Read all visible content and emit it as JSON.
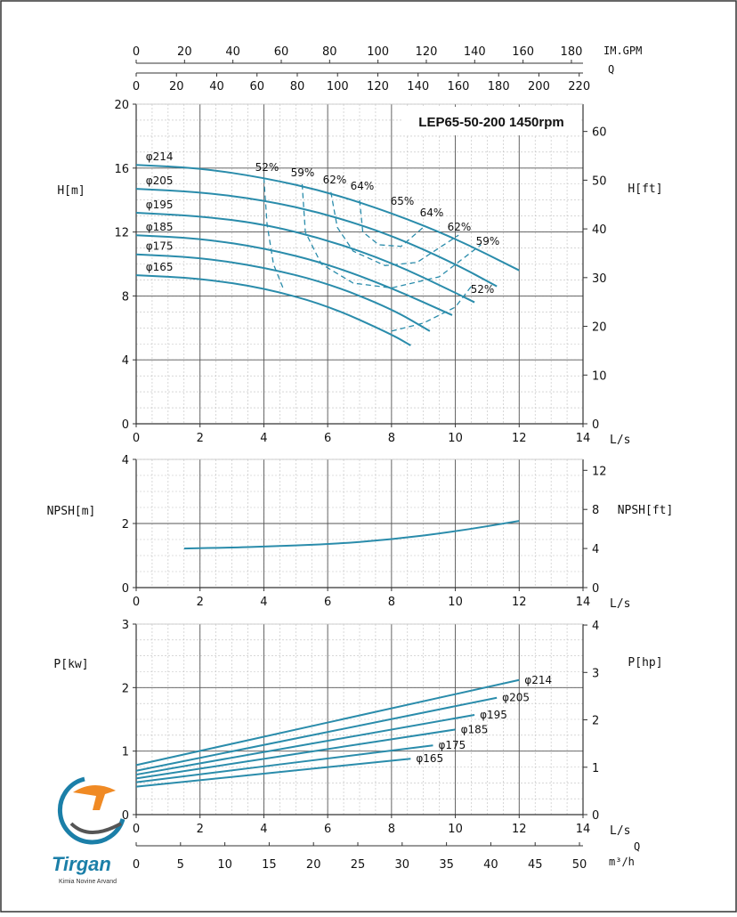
{
  "chart_data": [
    {
      "type": "line",
      "name": "head",
      "title": "LEP65-50-200 1450rpm",
      "xlabel": "L/s",
      "ylabel": "H[m]",
      "y2label": "H[ft]",
      "xlim": [
        0,
        14
      ],
      "ylim": [
        0,
        20
      ],
      "y2lim": [
        0,
        65.6
      ],
      "xticks": [
        "0",
        "2",
        "4",
        "6",
        "8",
        "10",
        "12",
        "14"
      ],
      "yticks": [
        "0",
        "4",
        "8",
        "12",
        "16",
        "20"
      ],
      "y2ticks": [
        "0",
        "10",
        "20",
        "30",
        "40",
        "50",
        "60"
      ],
      "top_axes": [
        {
          "label": "IM.GPM",
          "ticks": [
            "0",
            "20",
            "40",
            "60",
            "80",
            "100",
            "120",
            "140",
            "160",
            "180"
          ],
          "max": 184.8
        },
        {
          "label": "Q",
          "ticks": [
            "0",
            "20",
            "40",
            "60",
            "80",
            "100",
            "120",
            "140",
            "160",
            "180",
            "200",
            "220"
          ],
          "max": 221.9
        }
      ],
      "series": [
        {
          "name": "φ214",
          "x": [
            0,
            2,
            4,
            6,
            8,
            10,
            12
          ],
          "y": [
            16.2,
            16.0,
            15.4,
            14.5,
            13.2,
            11.6,
            9.6
          ]
        },
        {
          "name": "φ205",
          "x": [
            0,
            2,
            4,
            6,
            8,
            10,
            11.3
          ],
          "y": [
            14.7,
            14.5,
            14.0,
            13.1,
            11.8,
            10.0,
            8.6
          ]
        },
        {
          "name": "φ195",
          "x": [
            0,
            2,
            4,
            6,
            8,
            10,
            10.6
          ],
          "y": [
            13.2,
            13.0,
            12.5,
            11.5,
            10.1,
            8.2,
            7.6
          ]
        },
        {
          "name": "φ185",
          "x": [
            0,
            2,
            4,
            6,
            8,
            9.9
          ],
          "y": [
            11.8,
            11.6,
            11.0,
            10.0,
            8.5,
            6.8
          ]
        },
        {
          "name": "φ175",
          "x": [
            0,
            2,
            4,
            6,
            8,
            9.2
          ],
          "y": [
            10.6,
            10.4,
            9.8,
            8.8,
            7.2,
            5.8
          ]
        },
        {
          "name": "φ165",
          "x": [
            0,
            2,
            4,
            6,
            8,
            8.6
          ],
          "y": [
            9.3,
            9.1,
            8.5,
            7.4,
            5.6,
            4.9
          ]
        }
      ],
      "efficiency_labels": [
        "52%",
        "59%",
        "62%",
        "64%",
        "65%",
        "64%",
        "62%",
        "59%",
        "52%"
      ],
      "efficiency_contours": [
        {
          "name": "52%",
          "x": [
            4.0,
            4.1,
            4.3,
            4.6
          ],
          "y": [
            15.4,
            12.5,
            10.0,
            8.5
          ],
          "x2": [
            8.0,
            9.0,
            10.0,
            10.5
          ],
          "y2": [
            5.8,
            6.3,
            7.3,
            8.6
          ]
        },
        {
          "name": "59%",
          "x": [
            5.2,
            5.3,
            5.8,
            6.8,
            8.0,
            9.5,
            10.8
          ],
          "y": [
            15.0,
            12.0,
            10.0,
            8.8,
            8.5,
            9.2,
            11.2
          ]
        },
        {
          "name": "62%",
          "x": [
            6.1,
            6.3,
            6.8,
            7.8,
            8.8,
            10.1
          ],
          "y": [
            14.5,
            12.3,
            10.8,
            9.9,
            10.1,
            11.8
          ]
        },
        {
          "name": "64%",
          "x": [
            7.0,
            7.1,
            7.6,
            8.3,
            9.0
          ],
          "y": [
            14.0,
            12.0,
            11.2,
            11.1,
            12.3
          ]
        }
      ]
    },
    {
      "type": "line",
      "name": "npsh",
      "xlabel": "L/s",
      "ylabel": "NPSH[m]",
      "y2label": "NPSH[ft]",
      "xlim": [
        0,
        14
      ],
      "ylim": [
        0,
        4
      ],
      "y2lim": [
        0,
        13.12
      ],
      "xticks": [
        "0",
        "2",
        "4",
        "6",
        "8",
        "10",
        "12",
        "14"
      ],
      "yticks": [
        "0",
        "2",
        "4"
      ],
      "y2ticks": [
        "0",
        "4",
        "8",
        "12"
      ],
      "series": [
        {
          "name": "NPSH",
          "x": [
            1.5,
            3,
            4,
            6,
            8,
            10,
            12
          ],
          "y": [
            1.22,
            1.25,
            1.28,
            1.35,
            1.5,
            1.75,
            2.08
          ]
        }
      ]
    },
    {
      "type": "line",
      "name": "power",
      "xlabel": "L/s",
      "ylabel": "P[kw]",
      "y2label": "P[hp]",
      "xlim": [
        0,
        14
      ],
      "ylim": [
        0,
        3
      ],
      "y2lim": [
        0,
        4.02
      ],
      "xticks": [
        "0",
        "2",
        "4",
        "6",
        "8",
        "10",
        "12",
        "14"
      ],
      "yticks": [
        "0",
        "1",
        "2",
        "3"
      ],
      "y2ticks": [
        "0",
        "1",
        "2",
        "3",
        "4"
      ],
      "bottom_axis": {
        "label_q": "Q",
        "label_unit": "m³/h",
        "ticks": [
          "0",
          "5",
          "10",
          "15",
          "20",
          "25",
          "30",
          "35",
          "40",
          "45",
          "50"
        ],
        "max": 50.4
      },
      "series": [
        {
          "name": "φ214",
          "x": [
            0,
            12
          ],
          "y": [
            0.78,
            2.12
          ]
        },
        {
          "name": "φ205",
          "x": [
            0,
            11.3
          ],
          "y": [
            0.69,
            1.84
          ]
        },
        {
          "name": "φ195",
          "x": [
            0,
            10.6
          ],
          "y": [
            0.63,
            1.57
          ]
        },
        {
          "name": "φ185",
          "x": [
            0,
            10.0
          ],
          "y": [
            0.57,
            1.34
          ]
        },
        {
          "name": "φ175",
          "x": [
            0,
            9.3
          ],
          "y": [
            0.51,
            1.09
          ]
        },
        {
          "name": "φ165",
          "x": [
            0,
            8.6
          ],
          "y": [
            0.44,
            0.88
          ]
        }
      ]
    }
  ],
  "logo": {
    "name": "Tirgan",
    "subtitle": "Kimia Novine Arvand"
  },
  "colors": {
    "curve": "#2a8cab",
    "grid_minor": "#bfbfbf",
    "grid_major": "#555555",
    "frame": "#333333"
  }
}
